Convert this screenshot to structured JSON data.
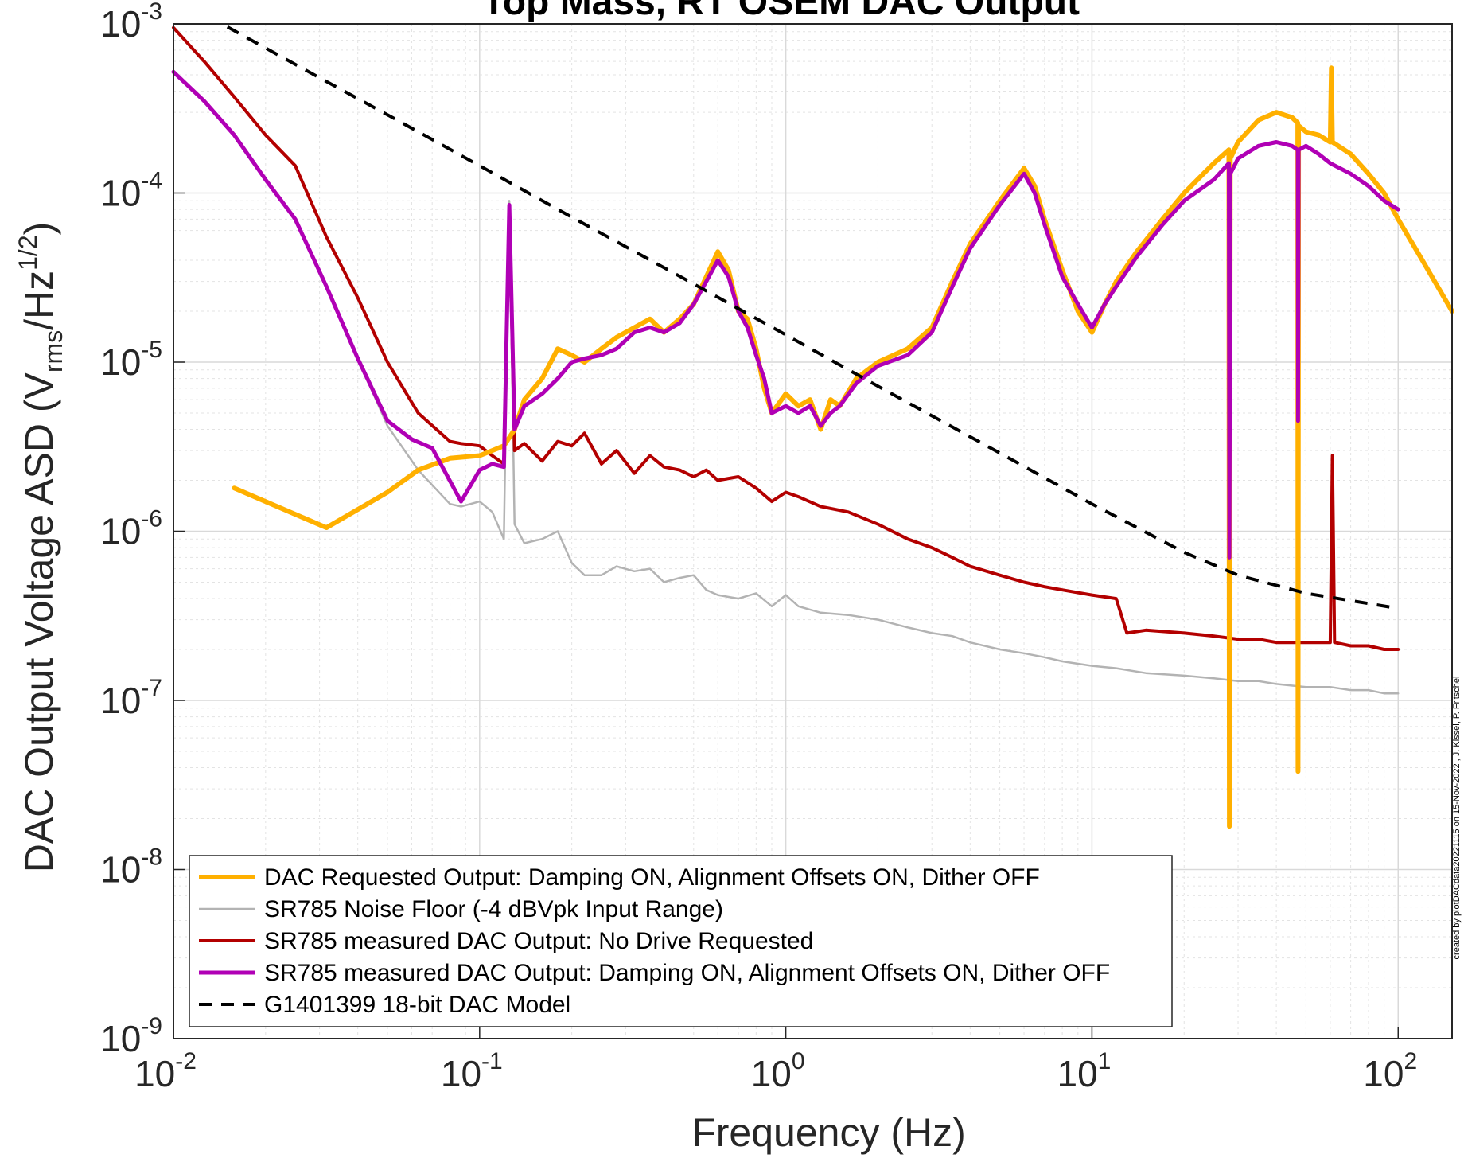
{
  "chart_data": {
    "type": "line",
    "title": "Top Mass, R Top Mass, RT OSEM DAC Output",
    "title_visible": "Top Mass, RT OSEM DAC Output",
    "xlabel": "Frequency (Hz)",
    "ylabel_main": "DAC Output Voltage ASD (V",
    "ylabel_sub": "rms",
    "ylabel_mid": "/Hz",
    "ylabel_sup": "1/2",
    "ylabel_end": ")",
    "x_scale": "log",
    "y_scale": "log",
    "xlim": [
      0.01,
      150
    ],
    "ylim": [
      1e-09,
      0.001
    ],
    "grid": true,
    "minor_grid": true,
    "legend_position": "bottom-left",
    "x_ticks": [
      {
        "value": 0.01,
        "base": "10",
        "exp": "-2"
      },
      {
        "value": 0.1,
        "base": "10",
        "exp": "-1"
      },
      {
        "value": 1,
        "base": "10",
        "exp": "0"
      },
      {
        "value": 10,
        "base": "10",
        "exp": "1"
      },
      {
        "value": 100,
        "base": "10",
        "exp": "2"
      }
    ],
    "y_ticks": [
      {
        "value": 1e-09,
        "base": "10",
        "exp": "-9"
      },
      {
        "value": 1e-08,
        "base": "10",
        "exp": "-8"
      },
      {
        "value": 1e-07,
        "base": "10",
        "exp": "-7"
      },
      {
        "value": 1e-06,
        "base": "10",
        "exp": "-6"
      },
      {
        "value": 1e-05,
        "base": "10",
        "exp": "-5"
      },
      {
        "value": 0.0001,
        "base": "10",
        "exp": "-4"
      },
      {
        "value": 0.001,
        "base": "10",
        "exp": "-3"
      }
    ],
    "series": [
      {
        "name": "SR785 Noise Floor (-4 dBVpk Input Range)",
        "color": "#b3b3b3",
        "width": 2.5,
        "dash": "",
        "x": [
          0.01,
          0.0126,
          0.0158,
          0.02,
          0.025,
          0.0316,
          0.04,
          0.05,
          0.063,
          0.08,
          0.087,
          0.1,
          0.11,
          0.12,
          0.125,
          0.13,
          0.14,
          0.16,
          0.18,
          0.2,
          0.22,
          0.25,
          0.28,
          0.32,
          0.36,
          0.4,
          0.45,
          0.5,
          0.55,
          0.6,
          0.7,
          0.8,
          0.9,
          1.0,
          1.1,
          1.3,
          1.6,
          2.0,
          2.5,
          3.0,
          3.5,
          4.0,
          5.0,
          6.0,
          7.0,
          8.0,
          10,
          12,
          15,
          20,
          25,
          30,
          35,
          40,
          50,
          60,
          70,
          80,
          90,
          100
        ],
        "y": [
          0.00052,
          0.00035,
          0.00022,
          0.00012,
          7e-05,
          2.8e-05,
          1.05e-05,
          4.2e-06,
          2.3e-06,
          1.45e-06,
          1.4e-06,
          1.5e-06,
          1.3e-06,
          9e-07,
          9e-05,
          1.1e-06,
          8.5e-07,
          9e-07,
          1e-06,
          6.5e-07,
          5.5e-07,
          5.5e-07,
          6.2e-07,
          5.8e-07,
          6e-07,
          5e-07,
          5.3e-07,
          5.5e-07,
          4.5e-07,
          4.2e-07,
          4e-07,
          4.3e-07,
          3.6e-07,
          4.2e-07,
          3.6e-07,
          3.3e-07,
          3.2e-07,
          3e-07,
          2.7e-07,
          2.5e-07,
          2.4e-07,
          2.2e-07,
          2e-07,
          1.9e-07,
          1.8e-07,
          1.7e-07,
          1.6e-07,
          1.55e-07,
          1.45e-07,
          1.4e-07,
          1.35e-07,
          1.3e-07,
          1.3e-07,
          1.25e-07,
          1.2e-07,
          1.2e-07,
          1.15e-07,
          1.15e-07,
          1.1e-07,
          1.1e-07
        ]
      },
      {
        "name": "SR785 measured DAC Output: No Drive Requested",
        "color": "#b30000",
        "width": 4,
        "dash": "",
        "x": [
          0.01,
          0.0126,
          0.0158,
          0.02,
          0.025,
          0.0316,
          0.04,
          0.05,
          0.063,
          0.08,
          0.087,
          0.1,
          0.11,
          0.12,
          0.125,
          0.13,
          0.14,
          0.16,
          0.18,
          0.2,
          0.22,
          0.25,
          0.28,
          0.32,
          0.36,
          0.4,
          0.45,
          0.5,
          0.55,
          0.6,
          0.7,
          0.8,
          0.9,
          1.0,
          1.1,
          1.3,
          1.6,
          2.0,
          2.5,
          3.0,
          3.5,
          4.0,
          5.0,
          6.0,
          7.0,
          8.0,
          10,
          12,
          13,
          15,
          20,
          25,
          30,
          35,
          40,
          50,
          60,
          61,
          62,
          70,
          80,
          90,
          100
        ],
        "y": [
          0.00095,
          0.0006,
          0.00037,
          0.00022,
          0.000145,
          5.5e-05,
          2.4e-05,
          1e-05,
          5e-06,
          3.4e-06,
          3.3e-06,
          3.2e-06,
          2.8e-06,
          2.5e-06,
          8.5e-05,
          3e-06,
          3.3e-06,
          2.6e-06,
          3.4e-06,
          3.2e-06,
          3.8e-06,
          2.5e-06,
          3e-06,
          2.2e-06,
          2.8e-06,
          2.4e-06,
          2.3e-06,
          2.1e-06,
          2.3e-06,
          2e-06,
          2.1e-06,
          1.8e-06,
          1.5e-06,
          1.7e-06,
          1.6e-06,
          1.4e-06,
          1.3e-06,
          1.1e-06,
          9e-07,
          8e-07,
          7e-07,
          6.2e-07,
          5.5e-07,
          5e-07,
          4.7e-07,
          4.5e-07,
          4.2e-07,
          4e-07,
          2.5e-07,
          2.6e-07,
          2.5e-07,
          2.4e-07,
          2.3e-07,
          2.3e-07,
          2.2e-07,
          2.2e-07,
          2.2e-07,
          2.8e-06,
          2.2e-07,
          2.1e-07,
          2.1e-07,
          2e-07,
          2e-07
        ]
      },
      {
        "name": "DAC Requested Output: Damping ON, Alignment Offsets ON, Dither OFF",
        "color": "#ffb000",
        "width": 6,
        "dash": "",
        "x": [
          0.0158,
          0.0316,
          0.05,
          0.063,
          0.08,
          0.1,
          0.11,
          0.12,
          0.13,
          0.14,
          0.16,
          0.18,
          0.2,
          0.22,
          0.25,
          0.28,
          0.32,
          0.36,
          0.4,
          0.45,
          0.5,
          0.55,
          0.6,
          0.65,
          0.7,
          0.75,
          0.8,
          0.85,
          0.9,
          1.0,
          1.1,
          1.2,
          1.3,
          1.4,
          1.5,
          1.7,
          2.0,
          2.5,
          3.0,
          3.5,
          4.0,
          5.0,
          6.0,
          6.5,
          7.0,
          8.0,
          9.0,
          10,
          11,
          12,
          14,
          17,
          20,
          25,
          28,
          28.1,
          28.3,
          30,
          35,
          40,
          45,
          47,
          47.1,
          47.3,
          50,
          55,
          60,
          60.5,
          61,
          70,
          80,
          90,
          100,
          120,
          150
        ],
        "y": [
          1.8e-06,
          1.05e-06,
          1.7e-06,
          2.3e-06,
          2.7e-06,
          2.8e-06,
          3e-06,
          3.2e-06,
          4e-06,
          6e-06,
          8e-06,
          1.2e-05,
          1.1e-05,
          1e-05,
          1.2e-05,
          1.4e-05,
          1.6e-05,
          1.8e-05,
          1.5e-05,
          1.8e-05,
          2.2e-05,
          3.2e-05,
          4.5e-05,
          3.5e-05,
          2e-05,
          1.8e-05,
          1.2e-05,
          7e-06,
          5e-06,
          6.5e-06,
          5.5e-06,
          6e-06,
          4e-06,
          6e-06,
          5.5e-06,
          8e-06,
          1e-05,
          1.2e-05,
          1.6e-05,
          3e-05,
          5e-05,
          9e-05,
          0.00014,
          0.00011,
          7e-05,
          3.5e-05,
          2e-05,
          1.5e-05,
          2.2e-05,
          3e-05,
          4.5e-05,
          7e-05,
          0.0001,
          0.00015,
          0.00018,
          1.8e-08,
          0.00016,
          0.0002,
          0.00027,
          0.0003,
          0.00028,
          0.00026,
          3.8e-08,
          0.00025,
          0.00023,
          0.00022,
          0.0002,
          0.00055,
          0.0002,
          0.00017,
          0.00013,
          0.0001,
          7e-05,
          4e-05,
          2e-05
        ]
      },
      {
        "name": "SR785 measured DAC Output: Damping ON, Alignment Offsets ON, Dither OFF",
        "color": "#b000b5",
        "width": 5,
        "dash": "",
        "x": [
          0.01,
          0.0126,
          0.0158,
          0.02,
          0.025,
          0.0316,
          0.04,
          0.05,
          0.06,
          0.07,
          0.087,
          0.1,
          0.11,
          0.12,
          0.125,
          0.13,
          0.14,
          0.16,
          0.18,
          0.2,
          0.22,
          0.25,
          0.28,
          0.32,
          0.36,
          0.4,
          0.45,
          0.5,
          0.55,
          0.6,
          0.65,
          0.7,
          0.75,
          0.8,
          0.85,
          0.9,
          1.0,
          1.1,
          1.2,
          1.3,
          1.4,
          1.5,
          1.7,
          2.0,
          2.5,
          3.0,
          3.5,
          4.0,
          5.0,
          6.0,
          6.5,
          7.0,
          8.0,
          9.0,
          10,
          11,
          12,
          14,
          17,
          20,
          25,
          28,
          28.1,
          28.3,
          30,
          35,
          40,
          45,
          47,
          47.1,
          47.3,
          50,
          55,
          60,
          70,
          80,
          90,
          100
        ],
        "y": [
          0.00052,
          0.00035,
          0.00022,
          0.00012,
          7e-05,
          2.8e-05,
          1.05e-05,
          4.5e-06,
          3.5e-06,
          3.1e-06,
          1.5e-06,
          2.3e-06,
          2.5e-06,
          2.4e-06,
          8.5e-05,
          4e-06,
          5.5e-06,
          6.5e-06,
          8e-06,
          1e-05,
          1.05e-05,
          1.1e-05,
          1.2e-05,
          1.5e-05,
          1.6e-05,
          1.5e-05,
          1.7e-05,
          2.2e-05,
          3e-05,
          4e-05,
          3.2e-05,
          2e-05,
          1.6e-05,
          1.1e-05,
          8e-06,
          5e-06,
          5.5e-06,
          5e-06,
          5.5e-06,
          4.2e-06,
          5e-06,
          5.5e-06,
          7.5e-06,
          9.5e-06,
          1.1e-05,
          1.5e-05,
          2.8e-05,
          4.7e-05,
          8.5e-05,
          0.00013,
          0.0001,
          6.5e-05,
          3.2e-05,
          2.2e-05,
          1.6e-05,
          2.2e-05,
          2.8e-05,
          4.2e-05,
          6.5e-05,
          9e-05,
          0.00012,
          0.00015,
          7e-07,
          0.00013,
          0.00016,
          0.00019,
          0.0002,
          0.00019,
          0.00018,
          4.5e-06,
          0.00018,
          0.00019,
          0.00017,
          0.00015,
          0.00013,
          0.00011,
          9e-05,
          8e-05
        ]
      },
      {
        "name": "G1401399 18-bit DAC Model",
        "color": "#000000",
        "width": 4,
        "dash": "16,12",
        "x": [
          0.015,
          0.02,
          0.03,
          0.05,
          0.1,
          0.2,
          0.5,
          1.0,
          2.0,
          5.0,
          10,
          20,
          30,
          50,
          100
        ],
        "y": [
          0.00096,
          0.00072,
          0.00048,
          0.00029,
          0.000145,
          7.2e-05,
          2.9e-05,
          1.45e-05,
          7.2e-06,
          2.9e-06,
          1.45e-06,
          7.5e-07,
          5.5e-07,
          4.3e-07,
          3.5e-07
        ]
      }
    ],
    "legend": [
      {
        "name": "DAC Requested Output: Damping ON, Alignment Offsets ON, Dither OFF",
        "color": "#ffb000",
        "width": 6,
        "dash": ""
      },
      {
        "name": "SR785 Noise Floor (-4 dBVpk Input Range)",
        "color": "#b3b3b3",
        "width": 2.5,
        "dash": ""
      },
      {
        "name": "SR785 measured DAC Output: No Drive Requested",
        "color": "#b30000",
        "width": 4,
        "dash": ""
      },
      {
        "name": "SR785 measured DAC Output: Damping ON, Alignment Offsets ON, Dither OFF",
        "color": "#b000b5",
        "width": 5,
        "dash": ""
      },
      {
        "name": "G1401399 18-bit DAC Model",
        "color": "#000000",
        "width": 4,
        "dash": "16,12"
      }
    ],
    "credit": "created by plotDACdata20221115 on 15-Nov-2022 , J. Kissel, P. Fritschel"
  }
}
